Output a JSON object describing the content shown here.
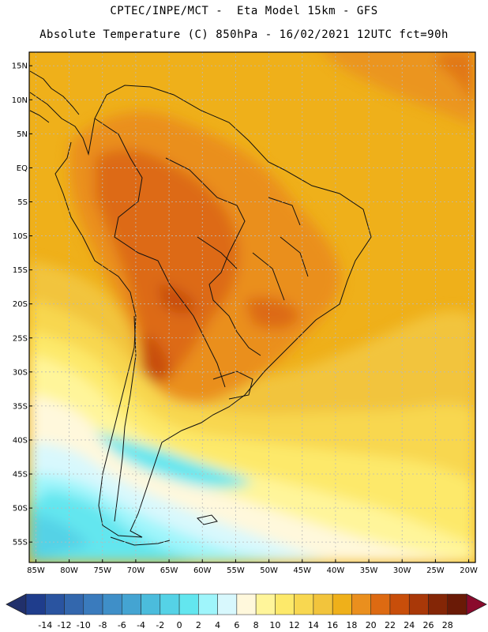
{
  "header": {
    "line1": "CPTEC/INPE/MCT -  Eta Model 15km - GFS",
    "line2": "Absolute Temperature (C) 850hPa - 16/02/2021 12UTC fct=90h"
  },
  "map": {
    "lon_range": [
      -86,
      -19
    ],
    "lat_range": [
      -58,
      17
    ],
    "lat_ticks": [
      {
        "v": 15,
        "label": "15N"
      },
      {
        "v": 10,
        "label": "10N"
      },
      {
        "v": 5,
        "label": "5N"
      },
      {
        "v": 0,
        "label": "EQ"
      },
      {
        "v": -5,
        "label": "5S"
      },
      {
        "v": -10,
        "label": "10S"
      },
      {
        "v": -15,
        "label": "15S"
      },
      {
        "v": -20,
        "label": "20S"
      },
      {
        "v": -25,
        "label": "25S"
      },
      {
        "v": -30,
        "label": "30S"
      },
      {
        "v": -35,
        "label": "35S"
      },
      {
        "v": -40,
        "label": "40S"
      },
      {
        "v": -45,
        "label": "45S"
      },
      {
        "v": -50,
        "label": "50S"
      },
      {
        "v": -55,
        "label": "55S"
      }
    ],
    "lon_ticks": [
      {
        "v": -85,
        "label": "85W"
      },
      {
        "v": -80,
        "label": "80W"
      },
      {
        "v": -75,
        "label": "75W"
      },
      {
        "v": -70,
        "label": "70W"
      },
      {
        "v": -65,
        "label": "65W"
      },
      {
        "v": -60,
        "label": "60W"
      },
      {
        "v": -55,
        "label": "55W"
      },
      {
        "v": -50,
        "label": "50W"
      },
      {
        "v": -45,
        "label": "45W"
      },
      {
        "v": -40,
        "label": "40W"
      },
      {
        "v": -35,
        "label": "35W"
      },
      {
        "v": -30,
        "label": "30W"
      },
      {
        "v": -25,
        "label": "25W"
      },
      {
        "v": -20,
        "label": "20W"
      }
    ]
  },
  "colorbar": {
    "labels": [
      "-14",
      "-12",
      "-10",
      "-8",
      "-6",
      "-4",
      "-2",
      "0",
      "2",
      "4",
      "6",
      "8",
      "10",
      "12",
      "14",
      "16",
      "18",
      "20",
      "22",
      "24",
      "26",
      "28"
    ],
    "colors": [
      "#1f3d8c",
      "#2a54a0",
      "#3367ad",
      "#3a7bbd",
      "#3f8fc8",
      "#44a4d2",
      "#4bbcdc",
      "#55d2e6",
      "#63e6ef",
      "#9ff5fb",
      "#d8f8fd",
      "#fff8dc",
      "#fff59a",
      "#fde96a",
      "#f8d750",
      "#f2c43c",
      "#efb01a",
      "#ea8f1e",
      "#dd6a12",
      "#c84e0a",
      "#a93808",
      "#842606",
      "#6a1a06"
    ],
    "low_color": "#21306b",
    "high_color": "#8a0a2c"
  }
}
